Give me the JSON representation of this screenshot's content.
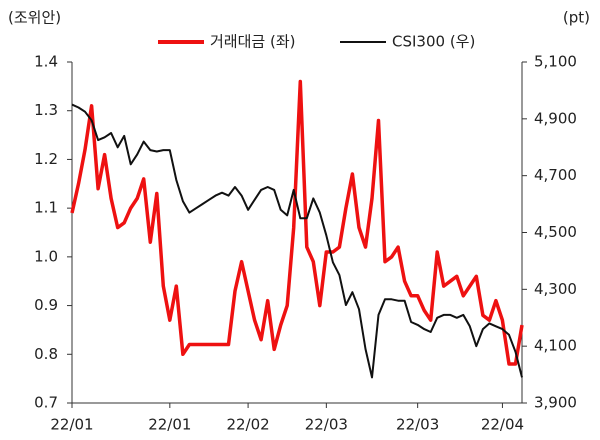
{
  "chart_data": {
    "type": "line",
    "y_label": "(조위안)",
    "y2_label": "(pt)",
    "categories": [
      "22/01",
      null,
      null,
      null,
      null,
      null,
      null,
      null,
      null,
      null,
      null,
      null,
      null,
      null,
      null,
      "22/01",
      null,
      null,
      null,
      null,
      null,
      null,
      null,
      null,
      null,
      null,
      null,
      "22/02",
      null,
      null,
      null,
      null,
      null,
      null,
      null,
      null,
      null,
      null,
      null,
      "22/03",
      null,
      null,
      null,
      null,
      null,
      null,
      null,
      null,
      null,
      null,
      null,
      null,
      null,
      "22/03",
      null,
      null,
      null,
      null,
      null,
      null,
      null,
      null,
      null,
      null,
      null,
      null,
      "22/04",
      null,
      null,
      null
    ],
    "series": [
      {
        "name": "거래대금 (좌)",
        "color": "#ee1111",
        "axis": "y",
        "values": [
          1.09,
          1.15,
          1.22,
          1.31,
          1.14,
          1.21,
          1.12,
          1.06,
          1.07,
          1.1,
          1.12,
          1.16,
          1.03,
          1.13,
          0.94,
          0.87,
          0.94,
          0.8,
          0.82,
          0.82,
          0.82,
          0.82,
          0.82,
          0.82,
          0.82,
          0.93,
          0.99,
          0.93,
          0.87,
          0.83,
          0.91,
          0.81,
          0.86,
          0.9,
          1.06,
          1.36,
          1.02,
          0.99,
          0.9,
          1.01,
          1.01,
          1.02,
          1.1,
          1.17,
          1.06,
          1.02,
          1.12,
          1.28,
          0.99,
          1.0,
          1.02,
          0.95,
          0.92,
          0.92,
          0.89,
          0.87,
          1.01,
          0.94,
          0.95,
          0.96,
          0.92,
          0.94,
          0.96,
          0.88,
          0.87,
          0.91,
          0.87,
          0.78,
          0.78,
          0.86
        ]
      },
      {
        "name": "CSI300 (우)",
        "color": "#111111",
        "axis": "y2",
        "values": [
          4950,
          4940,
          4925,
          4895,
          4825,
          4835,
          4850,
          4800,
          4840,
          4740,
          4775,
          4820,
          4790,
          4785,
          4790,
          4790,
          4685,
          4610,
          4570,
          4585,
          4600,
          4615,
          4630,
          4640,
          4630,
          4660,
          4630,
          4580,
          4615,
          4650,
          4660,
          4650,
          4580,
          4560,
          4650,
          4550,
          4550,
          4620,
          4570,
          4490,
          4395,
          4350,
          4245,
          4290,
          4230,
          4090,
          3990,
          4210,
          4265,
          4265,
          4260,
          4260,
          4185,
          4175,
          4160,
          4150,
          4200,
          4210,
          4210,
          4200,
          4210,
          4170,
          4100,
          4160,
          4180,
          4170,
          4160,
          4140,
          4080,
          3990
        ]
      }
    ],
    "ylim": [
      0.7,
      1.4
    ],
    "yticks": [
      0.7,
      0.8,
      0.9,
      {
        "value": 1,
        "label": "1.0"
      },
      1.1,
      1.2,
      1.3,
      1.4
    ],
    "y2lim": [
      3900,
      5100
    ],
    "y2ticks": [
      {
        "value": 3900,
        "label": "3,900"
      },
      {
        "value": 4100,
        "label": "4,100"
      },
      {
        "value": 4300,
        "label": "4,300"
      },
      {
        "value": 4500,
        "label": "4,500"
      },
      {
        "value": 4700,
        "label": "4,700"
      },
      {
        "value": 4900,
        "label": "4,900"
      },
      {
        "value": 5100,
        "label": "5,100"
      }
    ],
    "grid": false,
    "legend": "top"
  }
}
